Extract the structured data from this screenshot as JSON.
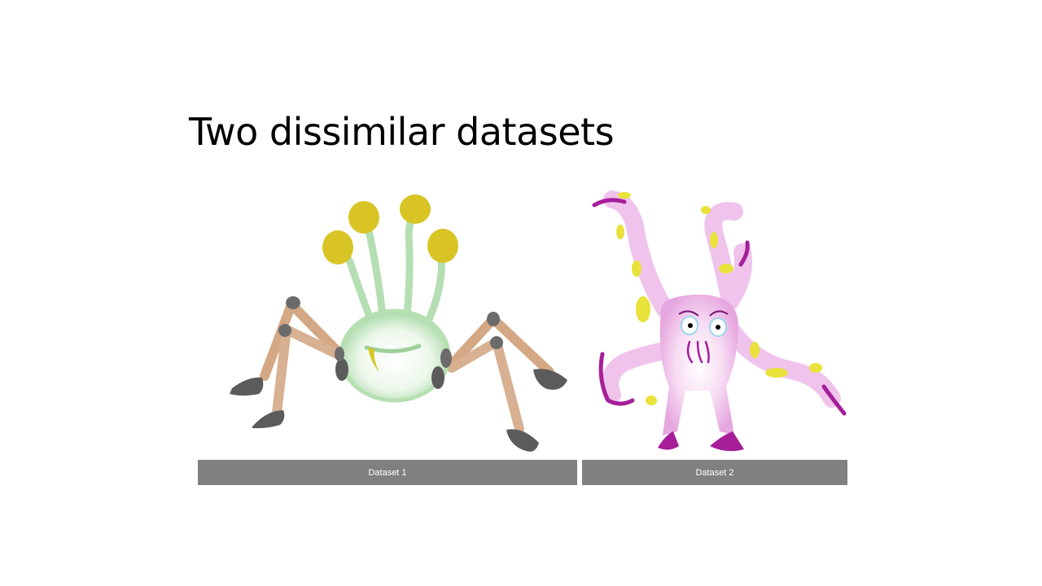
{
  "slide": {
    "title": "Two dissimilar datasets"
  },
  "captions": {
    "left": "Dataset 1",
    "right": "Dataset 2"
  },
  "illustrations": {
    "left_icon": "spider-creature-icon",
    "right_icon": "octopus-creature-icon"
  },
  "colors": {
    "caption_bg": "#808080",
    "caption_text": "#ffffff",
    "creature1_body": "#cfe9cc",
    "creature1_eyes": "#d8c425",
    "creature1_legs": "#d4a884",
    "creature1_feet": "#5b5b5b",
    "creature2_body": "#f2c9ee",
    "creature2_accent": "#a61e9a",
    "creature2_spots": "#e9e23a"
  }
}
